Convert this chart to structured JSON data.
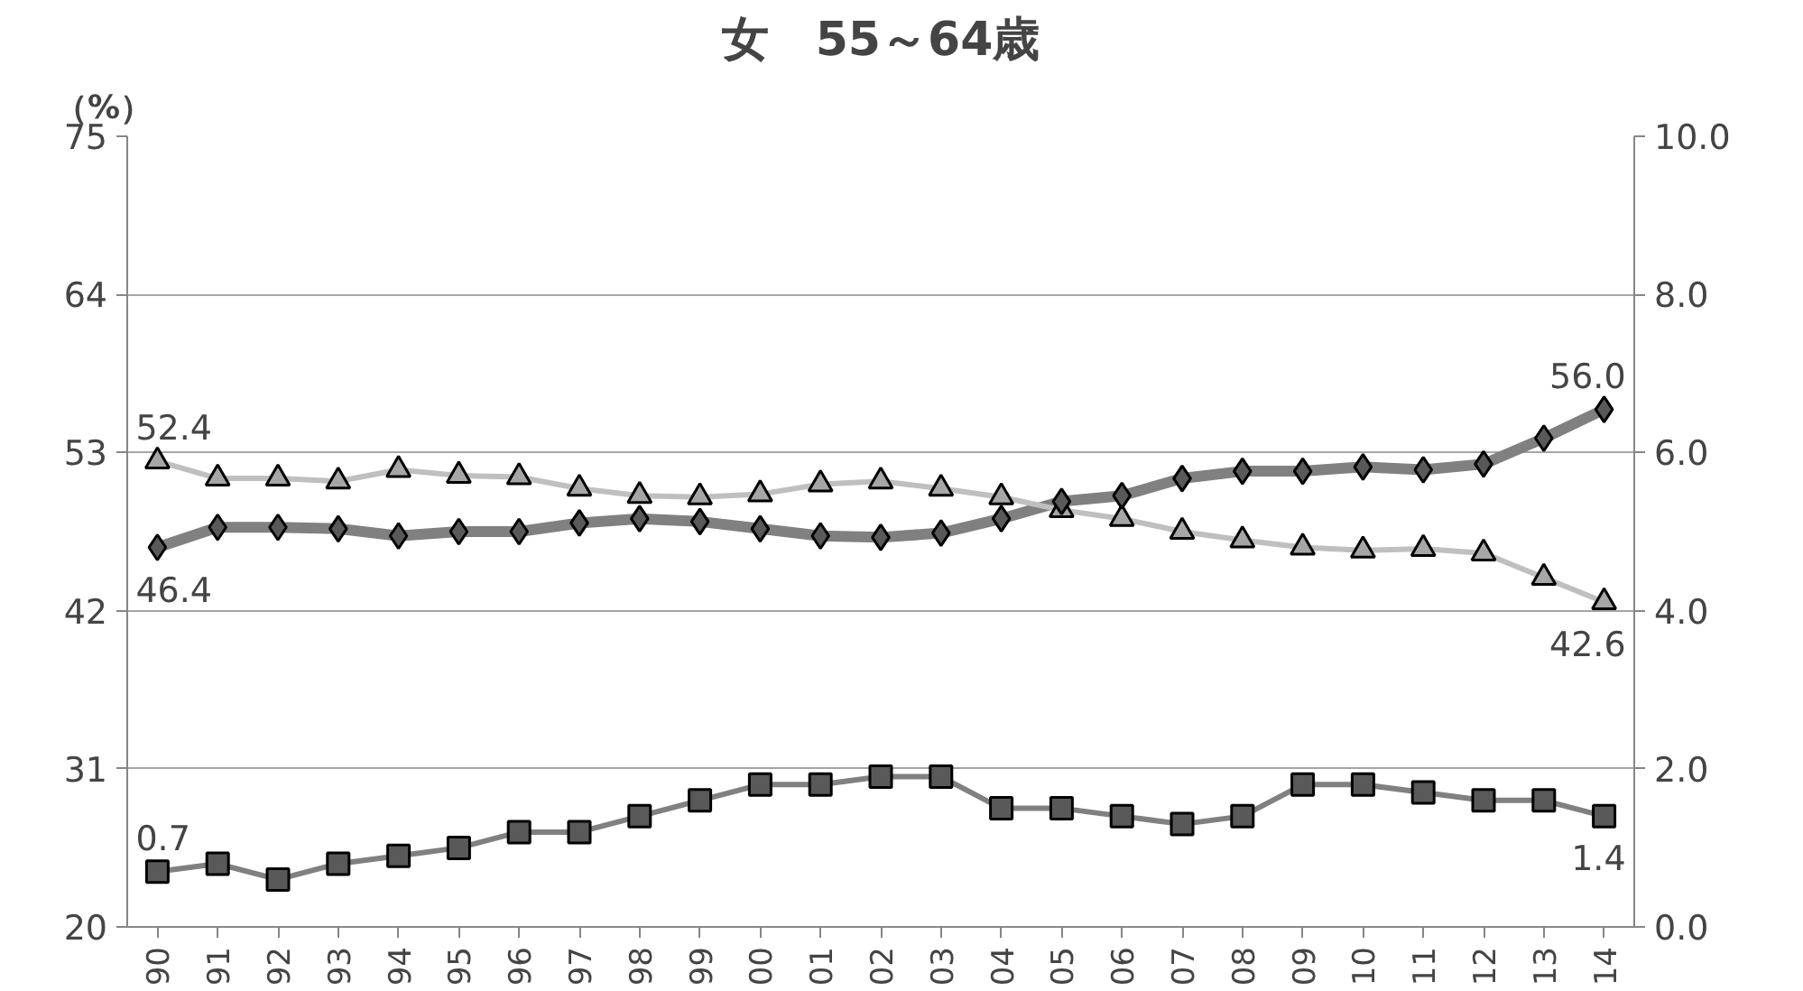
{
  "chart_data": {
    "type": "line",
    "title": "女　55～64歳",
    "ylabel": "（%）",
    "categories": [
      "90",
      "91",
      "92",
      "93",
      "94",
      "95",
      "96",
      "97",
      "98",
      "99",
      "00",
      "01",
      "02",
      "03",
      "04",
      "05",
      "06",
      "07",
      "08",
      "09",
      "10",
      "11",
      "12",
      "13",
      "14"
    ],
    "ylim": [
      20,
      75
    ],
    "yticks": [
      20,
      31,
      42,
      53,
      64,
      75
    ],
    "y2lim": [
      0,
      10
    ],
    "y2ticks": [
      {
        "value": 0,
        "label": "0.0"
      },
      {
        "value": 2,
        "label": "2.0"
      },
      {
        "value": 4,
        "label": "4.0"
      },
      {
        "value": 6,
        "label": "6.0"
      },
      {
        "value": 8,
        "label": "8.0"
      },
      {
        "value": 10,
        "label": "10.0"
      }
    ],
    "grid": "y",
    "series": [
      {
        "color": "#808080",
        "marker": "diamond",
        "values": [
          46.4,
          47.8,
          47.8,
          47.7,
          47.2,
          47.5,
          47.5,
          48.1,
          48.4,
          48.2,
          47.7,
          47.2,
          47.1,
          47.4,
          48.4,
          49.6,
          50.0,
          51.2,
          51.7,
          51.7,
          52.0,
          51.8,
          52.2,
          54.0,
          56.0
        ],
        "value_labels": [
          "46.4",
          null,
          null,
          null,
          null,
          null,
          null,
          null,
          null,
          null,
          null,
          null,
          null,
          null,
          null,
          null,
          null,
          null,
          null,
          null,
          null,
          null,
          null,
          null,
          "56.0"
        ]
      },
      {
        "color": "#bfbfbf",
        "marker": "triangle",
        "values": [
          52.4,
          51.2,
          51.2,
          51.0,
          51.8,
          51.4,
          51.3,
          50.5,
          50.0,
          49.9,
          50.1,
          50.8,
          51.0,
          50.5,
          49.9,
          49.0,
          48.4,
          47.5,
          46.9,
          46.4,
          46.2,
          46.3,
          46.0,
          44.3,
          42.6
        ],
        "value_labels": [
          "52.4",
          null,
          null,
          null,
          null,
          null,
          null,
          null,
          null,
          null,
          null,
          null,
          null,
          null,
          null,
          null,
          null,
          null,
          null,
          null,
          null,
          null,
          null,
          null,
          "42.6"
        ]
      },
      {
        "color": "#808080",
        "marker": "square",
        "axis": "y2",
        "values": [
          0.7,
          0.8,
          0.6,
          0.8,
          0.9,
          1.0,
          1.2,
          1.2,
          1.4,
          1.6,
          1.8,
          1.8,
          1.9,
          1.9,
          1.5,
          1.5,
          1.4,
          1.3,
          1.4,
          1.8,
          1.8,
          1.7,
          1.6,
          1.6,
          1.4
        ],
        "value_labels": [
          "0.7",
          null,
          null,
          null,
          null,
          null,
          null,
          null,
          null,
          null,
          null,
          null,
          null,
          null,
          null,
          null,
          null,
          null,
          null,
          null,
          null,
          null,
          null,
          null,
          "1.4"
        ]
      }
    ]
  }
}
